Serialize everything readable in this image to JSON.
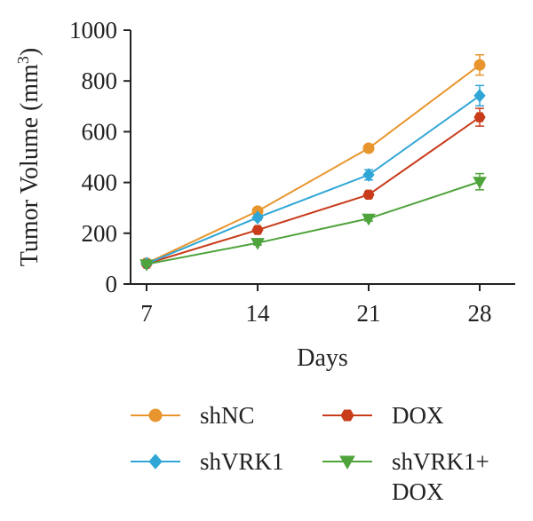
{
  "chart_data": {
    "type": "line",
    "x": [
      7,
      14,
      21,
      28
    ],
    "xlabel": "Days",
    "ylabel": "Tumor Volume (mm",
    "ylabel_sup": "3",
    "ylabel_close": ")",
    "ylim": [
      0,
      1000
    ],
    "yticks": [
      0,
      200,
      400,
      600,
      800,
      1000
    ],
    "xticks": [
      7,
      14,
      21,
      28
    ],
    "grid": false,
    "legend_placement": "bottom",
    "series": [
      {
        "name": "shNC",
        "color": "#E8952E",
        "marker": "circle",
        "values": [
          82,
          287,
          535,
          863
        ],
        "errors": [
          8,
          12,
          12,
          40
        ]
      },
      {
        "name": "DOX",
        "color": "#C83C1B",
        "marker": "hexagon",
        "values": [
          80,
          213,
          352,
          657
        ],
        "errors": [
          6,
          10,
          12,
          35
        ]
      },
      {
        "name": "shVRK1",
        "color": "#2FA6D6",
        "marker": "diamond",
        "values": [
          80,
          262,
          430,
          742
        ],
        "errors": [
          6,
          10,
          20,
          40
        ]
      },
      {
        "name": "shVRK1+\nDOX",
        "color": "#4EA33B",
        "marker": "triangle-down",
        "values": [
          78,
          162,
          258,
          403
        ],
        "errors": [
          5,
          8,
          10,
          32
        ]
      }
    ]
  }
}
